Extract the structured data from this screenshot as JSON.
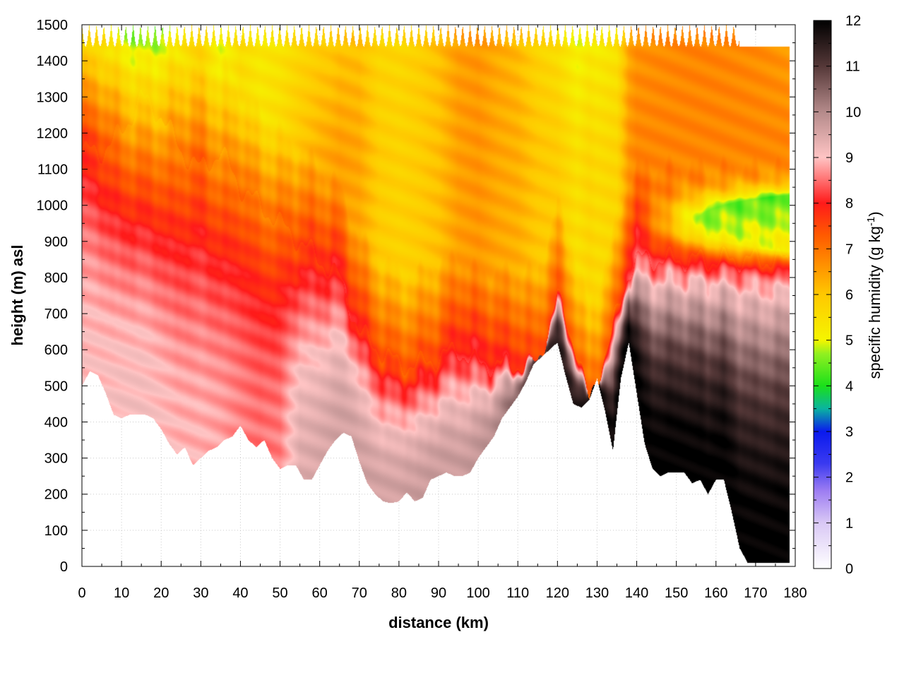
{
  "chart_data": {
    "type": "heatmap",
    "title": "",
    "xlabel": "distance (km)",
    "ylabel": "height (m) asl",
    "colorbar_label": "specific humidity (g kg",
    "colorbar_label_sup": "-1",
    "colorbar_label_end": ")",
    "xlim": [
      0,
      180
    ],
    "ylim": [
      0,
      1500
    ],
    "zlim": [
      0,
      12
    ],
    "x_ticks": [
      0,
      10,
      20,
      30,
      40,
      50,
      60,
      70,
      80,
      90,
      100,
      110,
      120,
      130,
      140,
      150,
      160,
      170,
      180
    ],
    "y_ticks": [
      0,
      100,
      200,
      300,
      400,
      500,
      600,
      700,
      800,
      900,
      1000,
      1100,
      1200,
      1300,
      1400,
      1500
    ],
    "z_ticks": [
      0,
      1,
      2,
      3,
      4,
      5,
      6,
      7,
      8,
      9,
      10,
      11,
      12
    ],
    "grid": true,
    "colormap": [
      [
        0,
        "#ffffff"
      ],
      [
        1,
        "#d9c8f5"
      ],
      [
        1.7,
        "#9d7df2"
      ],
      [
        2.3,
        "#3a3af0"
      ],
      [
        3,
        "#0a1aee"
      ],
      [
        3.5,
        "#0ab4a0"
      ],
      [
        4,
        "#1ae01a"
      ],
      [
        4.7,
        "#90f020"
      ],
      [
        5,
        "#f5f500"
      ],
      [
        6,
        "#ffc800"
      ],
      [
        6.7,
        "#ff8c00"
      ],
      [
        7.3,
        "#ff5a00"
      ],
      [
        8,
        "#ff1a1a"
      ],
      [
        9,
        "#ffc4c4"
      ],
      [
        10,
        "#b48a8a"
      ],
      [
        11,
        "#553838"
      ],
      [
        12,
        "#000000"
      ]
    ],
    "terrain": {
      "x": [
        0,
        2,
        4,
        6,
        8,
        10,
        12,
        14,
        16,
        18,
        20,
        22,
        24,
        26,
        28,
        30,
        32,
        34,
        36,
        38,
        40,
        42,
        44,
        46,
        48,
        50,
        52,
        54,
        56,
        58,
        60,
        62,
        64,
        66,
        68,
        70,
        72,
        74,
        76,
        78,
        80,
        82,
        84,
        86,
        88,
        90,
        92,
        94,
        96,
        98,
        100,
        102,
        104,
        106,
        108,
        110,
        112,
        114,
        116,
        118,
        120,
        122,
        124,
        126,
        128,
        130,
        132,
        134,
        136,
        138,
        140,
        142,
        144,
        146,
        148,
        150,
        152,
        154,
        156,
        158,
        160,
        162,
        164,
        166,
        168,
        170,
        172,
        174,
        176,
        178,
        180
      ],
      "surface_m": [
        500,
        540,
        530,
        480,
        420,
        410,
        420,
        420,
        420,
        410,
        380,
        340,
        310,
        330,
        280,
        300,
        320,
        330,
        350,
        360,
        390,
        350,
        330,
        350,
        300,
        270,
        280,
        280,
        240,
        240,
        280,
        320,
        350,
        370,
        360,
        290,
        230,
        200,
        180,
        175,
        180,
        205,
        180,
        190,
        240,
        250,
        260,
        250,
        250,
        260,
        300,
        330,
        360,
        410,
        440,
        470,
        510,
        560,
        580,
        600,
        620,
        530,
        450,
        440,
        460,
        520,
        430,
        320,
        520,
        620,
        480,
        340,
        270,
        250,
        260,
        260,
        260,
        230,
        240,
        200,
        240,
        240,
        150,
        50,
        10,
        10,
        10,
        10,
        10,
        10,
        10
      ],
      "extent_x": [
        0,
        180
      ]
    },
    "profiles": {
      "x": [
        0,
        5,
        10,
        15,
        20,
        25,
        30,
        35,
        40,
        45,
        50,
        55,
        60,
        65,
        70,
        75,
        80,
        85,
        90,
        95,
        100,
        105,
        110,
        115,
        120,
        125,
        128,
        130,
        135,
        138,
        140,
        145,
        150,
        155,
        160,
        165,
        170,
        175,
        180
      ],
      "layer_top_m": [
        1150,
        1150,
        1200,
        1300,
        1250,
        1150,
        1100,
        1150,
        1050,
        1000,
        950,
        900,
        850,
        800,
        650,
        600,
        560,
        560,
        580,
        600,
        560,
        560,
        560,
        560,
        750,
        600,
        450,
        520,
        700,
        820,
        850,
        850,
        850,
        850,
        850,
        850,
        850,
        850,
        850
      ],
      "upper_q": [
        6.3,
        6.0,
        5.2,
        4.2,
        4.6,
        5.4,
        5.8,
        5.0,
        5.6,
        5.4,
        5.6,
        6.0,
        6.3,
        6.5,
        6.4,
        5.9,
        5.8,
        5.9,
        6.1,
        6.5,
        6.6,
        6.4,
        6.3,
        6.0,
        5.9,
        5.5,
        5.7,
        5.6,
        5.7,
        6.6,
        6.8,
        6.8,
        6.8,
        6.8,
        6.8,
        6.8,
        6.8,
        6.8,
        6.8
      ],
      "near_surface_q": [
        9.0,
        9.0,
        9.1,
        9.1,
        9.0,
        8.9,
        8.9,
        8.8,
        8.6,
        8.5,
        8.6,
        9.4,
        9.5,
        9.6,
        9.6,
        9.6,
        9.6,
        9.7,
        9.7,
        9.7,
        9.8,
        10.0,
        10.5,
        11.0,
        11.5,
        11.6,
        11.8,
        11.8,
        11.9,
        12.0,
        12.0,
        12.0,
        12.0,
        12.0,
        12.0,
        12.0,
        12.0,
        12.0,
        12.0
      ],
      "moist_band_q_at_m": [
        [
          1000,
          4.0
        ],
        [
          950,
          3.9
        ],
        [
          900,
          4.0
        ]
      ],
      "moist_band_x_range": [
        140,
        180
      ]
    }
  }
}
